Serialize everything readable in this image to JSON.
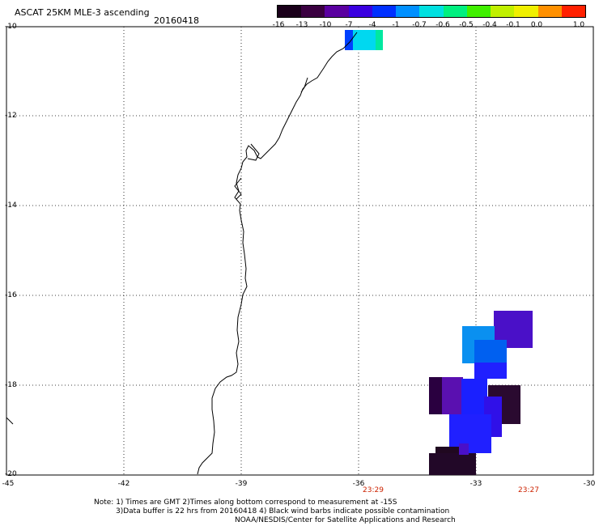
{
  "header": {
    "title": "ASCAT 25KM MLE-3 ascending",
    "date": "20160418"
  },
  "colorbar": {
    "ticks": [
      "-16",
      "-13",
      "-10",
      "-7",
      "-4",
      "-1",
      "-0.7",
      "-0.6",
      "-0.5",
      "-0.4",
      "-0.1",
      "0.0",
      "1.0"
    ],
    "colors": [
      "#1a001a",
      "#3a0040",
      "#5a00a0",
      "#3a00e0",
      "#0030ff",
      "#0090ff",
      "#00e0e0",
      "#00f080",
      "#40f000",
      "#c0f000",
      "#f0f000",
      "#ff9000",
      "#ff2000"
    ]
  },
  "map": {
    "lat_labels": [
      "-10",
      "-12",
      "-14",
      "-16",
      "-18",
      "-20"
    ],
    "lon_labels": [
      "-45",
      "-42",
      "-39",
      "-36",
      "-33",
      "-30"
    ],
    "times": [
      "23:29",
      "23:27"
    ]
  },
  "notes": {
    "line1": "Note: 1) Times are GMT 2)Times along bottom correspond to measurement at -15S",
    "line2": "3)Data buffer is 22 hrs from 20160418 4) Black wind barbs indicate possible contamination",
    "line3": "NOAA/NESDIS/Center for Satellite Applications and Research"
  }
}
